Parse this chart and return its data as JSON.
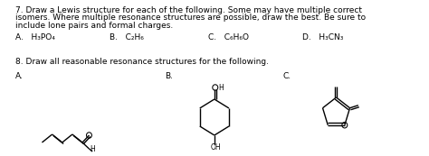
{
  "bg_color": "#ffffff",
  "q7_text_lines": [
    "7. Draw a Lewis structure for each of the following. Some may have multiple correct",
    "isomers. Where multiple resonance structures are possible, draw the best. Be sure to",
    "include lone pairs and formal charges."
  ],
  "q7_labels_A": "A.   H₃PO₄",
  "q7_labels_B": "B.   C₂H₆",
  "q7_labels_C": "C.   C₆H₆O",
  "q7_labels_D": "D.   H₃CN₃",
  "q8_text": "8. Draw all reasonable resonance structures for the following.",
  "q8_label_A": "A.",
  "q8_label_B": "B.",
  "q8_label_C": "C.",
  "font_size_body": 6.5,
  "font_size_small": 5.5,
  "lw": 1.0
}
